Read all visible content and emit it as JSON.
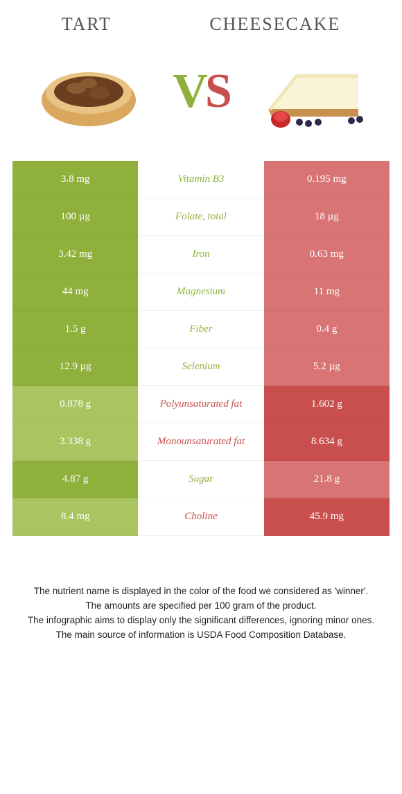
{
  "header": {
    "left_title": "Tart",
    "right_title": "Cheesecake"
  },
  "vs": {
    "v": "V",
    "s": "S"
  },
  "colors": {
    "left_strong": "#8fb13c",
    "left_weak": "#a9c562",
    "right_strong": "#c94f4f",
    "right_weak": "#d87474",
    "mid_bg": "#ffffff",
    "left_text": "#8fb13c",
    "right_text": "#c94f4f"
  },
  "rows": [
    {
      "label": "Vitamin B3",
      "left": "3.8 mg",
      "right": "0.195 mg",
      "winner": "left"
    },
    {
      "label": "Folate, total",
      "left": "100 µg",
      "right": "18 µg",
      "winner": "left"
    },
    {
      "label": "Iron",
      "left": "3.42 mg",
      "right": "0.63 mg",
      "winner": "left"
    },
    {
      "label": "Magnesium",
      "left": "44 mg",
      "right": "11 mg",
      "winner": "left"
    },
    {
      "label": "Fiber",
      "left": "1.5 g",
      "right": "0.4 g",
      "winner": "left"
    },
    {
      "label": "Selenium",
      "left": "12.9 µg",
      "right": "5.2 µg",
      "winner": "left"
    },
    {
      "label": "Polyunsaturated fat",
      "left": "0.878 g",
      "right": "1.602 g",
      "winner": "right"
    },
    {
      "label": "Monounsaturated fat",
      "left": "3.338 g",
      "right": "8.634 g",
      "winner": "right"
    },
    {
      "label": "Sugar",
      "left": "4.87 g",
      "right": "21.8 g",
      "winner": "left"
    },
    {
      "label": "Choline",
      "left": "8.4 mg",
      "right": "45.9 mg",
      "winner": "right"
    }
  ],
  "footer": {
    "line1": "The nutrient name is displayed in the color of the food we considered as 'winner'.",
    "line2": "The amounts are specified per 100 gram of the product.",
    "line3": "The infographic aims to display only the significant differences, ignoring minor ones.",
    "line4": "The main source of information is USDA Food Composition Database."
  }
}
